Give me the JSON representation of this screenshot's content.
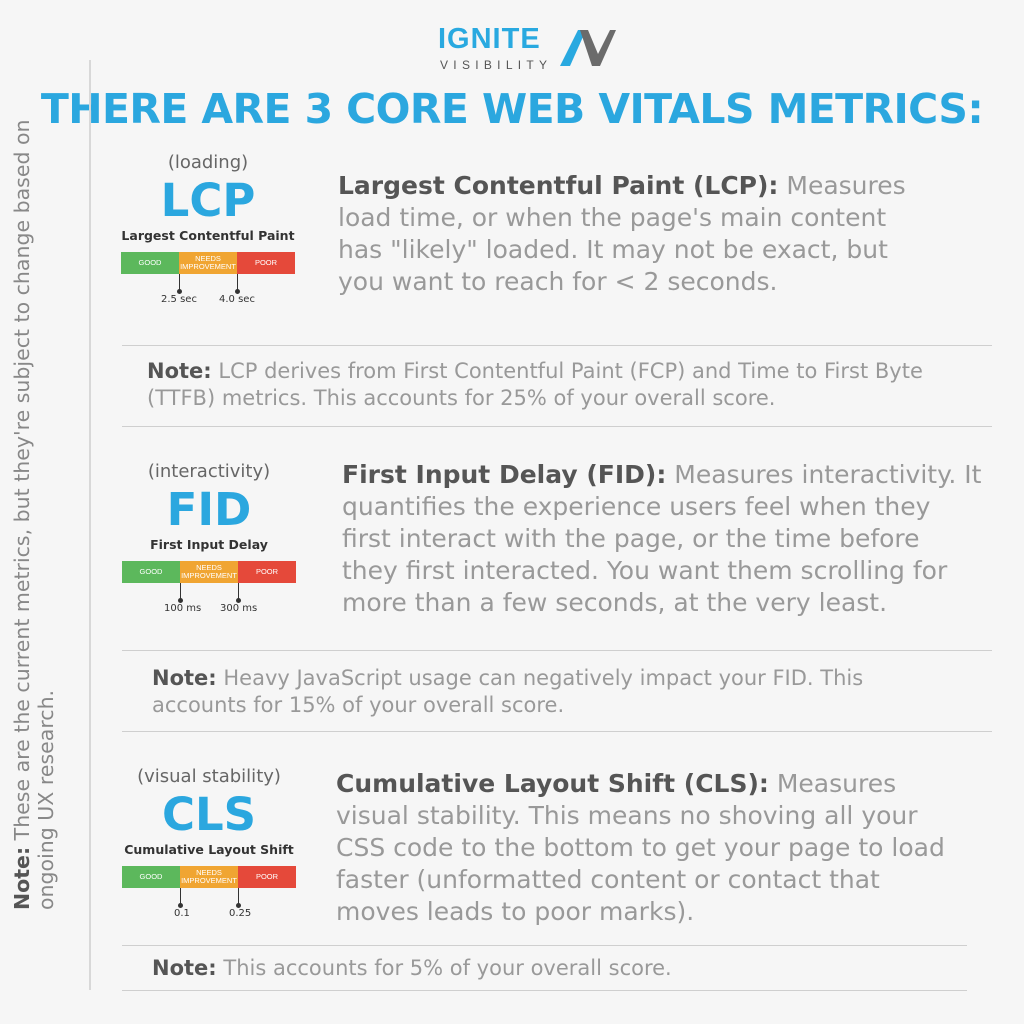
{
  "logo": {
    "word": "IGNITE",
    "sub": "VISIBILITY"
  },
  "headline": "THERE ARE 3 CORE WEB VITALS METRICS:",
  "side_note": {
    "label": "Note:",
    "text": " These are the current metrics, but they're subject to change based on ongoing UX research."
  },
  "metrics": [
    {
      "category": "(loading)",
      "abbr": "LCP",
      "full": "Largest Contentful Paint",
      "scale": {
        "good": "GOOD",
        "mid": "NEEDS IMPROVEMENT",
        "poor": "POOR",
        "t1": "2.5 sec",
        "t2": "4.0 sec"
      },
      "desc_title": "Largest Contentful Paint (LCP):",
      "desc_body": " Measures load time, or when the page's main content has \"likely\" loaded. It may not be exact, but you want to reach for < 2 seconds.",
      "note_label": "Note:",
      "note_body": " LCP derives from First Contentful Paint (FCP) and Time to First Byte (TTFB) metrics. This accounts for 25% of your overall score."
    },
    {
      "category": "(interactivity)",
      "abbr": "FID",
      "full": "First Input Delay",
      "scale": {
        "good": "GOOD",
        "mid": "NEEDS IMPROVEMENT",
        "poor": "POOR",
        "t1": "100 ms",
        "t2": "300 ms"
      },
      "desc_title": "First Input Delay (FID):",
      "desc_body": " Measures interactivity. It quantifies the experience users feel when they first interact with the page, or the time before they first interacted. You want them scrolling for more than a few seconds, at the very least.",
      "note_label": "Note:",
      "note_body": " Heavy JavaScript usage can negatively impact your FID. This accounts for 15% of your overall score."
    },
    {
      "category": "(visual stability)",
      "abbr": "CLS",
      "full": "Cumulative Layout Shift",
      "scale": {
        "good": "GOOD",
        "mid": "NEEDS IMPROVEMENT",
        "poor": "POOR",
        "t1": "0.1",
        "t2": "0.25"
      },
      "desc_title": "Cumulative Layout Shift (CLS):",
      "desc_body": " Measures visual stability. This means no shoving all your CSS code to the bottom to get your page to load faster (unformatted content or contact that moves leads to poor marks).",
      "note_label": "Note:",
      "note_body": " This accounts for 5% of your overall score."
    }
  ],
  "colors": {
    "accent": "#2ba7df",
    "good": "#5cb85c",
    "needs_improvement": "#f0a532",
    "poor": "#e5493a"
  }
}
